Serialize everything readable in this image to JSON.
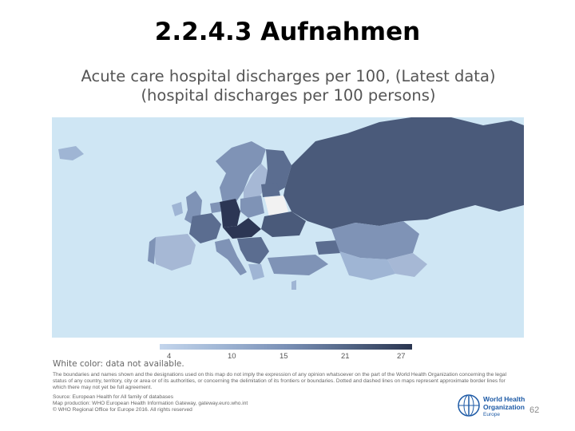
{
  "slide": {
    "title": "2.2.4.3 Aufnahmen",
    "page_number": "62"
  },
  "map": {
    "title_line1": "Acute care hospital discharges per 100, (Latest data)",
    "title_line2": "(hospital discharges per 100 persons)",
    "white_note": "White color: data not available.",
    "disclaimer": "The boundaries and names shown and the designations used on this map do not imply the expression of any opinion whatsoever on the part of the World Health Organization concerning the legal status of any country, territory, city or area or of its authorities, or concerning the delimitation of its frontiers or boundaries. Dotted and dashed lines on maps represent approximate border lines for which there may not yet be full agreement.",
    "source_line1": "Source: European Health for All family of databases",
    "source_line2": "Map production: WHO European Health Information Gateway, gateway.euro.who.int",
    "source_line3": "© WHO Regional Office for Europe 2016. All rights reserved",
    "legend": {
      "ticks": [
        "4",
        "10",
        "15",
        "21",
        "27"
      ],
      "range": [
        4,
        27
      ],
      "colors": [
        "#c3d5ec",
        "#9fb5d4",
        "#7a90b6",
        "#526585",
        "#2a3550"
      ]
    },
    "colors": {
      "water": "#cfe6f4",
      "no_data": "#f2f2f2",
      "russia": "#4a5a7a",
      "very_high": "#2c3654",
      "high": "#5b6d90",
      "medium": "#7f93b6",
      "low": "#a6b8d5"
    }
  },
  "logo": {
    "name_line1": "World Health",
    "name_line2": "Organization",
    "region": "Europe"
  }
}
